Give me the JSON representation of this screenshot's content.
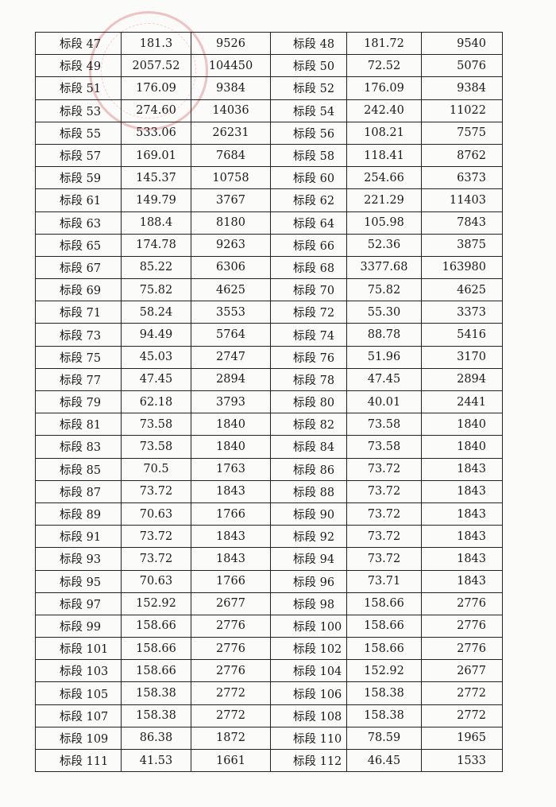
{
  "stamp_color": "#d65a5a",
  "rows": [
    [
      "标段 47",
      "181.3",
      "9526",
      "标段 48",
      "181.72",
      "9540"
    ],
    [
      "标段 49",
      "2057.52",
      "104450",
      "标段 50",
      "72.52",
      "5076"
    ],
    [
      "标段 51",
      "176.09",
      "9384",
      "标段 52",
      "176.09",
      "9384"
    ],
    [
      "标段 53",
      "274.60",
      "14036",
      "标段 54",
      "242.40",
      "11022"
    ],
    [
      "标段 55",
      "533.06",
      "26231",
      "标段 56",
      "108.21",
      "7575"
    ],
    [
      "标段 57",
      "169.01",
      "7684",
      "标段 58",
      "118.41",
      "8762"
    ],
    [
      "标段 59",
      "145.37",
      "10758",
      "标段 60",
      "254.66",
      "6373"
    ],
    [
      "标段 61",
      "149.79",
      "3767",
      "标段 62",
      "221.29",
      "11403"
    ],
    [
      "标段 63",
      "188.4",
      "8180",
      "标段 64",
      "105.98",
      "7843"
    ],
    [
      "标段 65",
      "174.78",
      "9263",
      "标段 66",
      "52.36",
      "3875"
    ],
    [
      "标段 67",
      "85.22",
      "6306",
      "标段 68",
      "3377.68",
      "163980"
    ],
    [
      "标段 69",
      "75.82",
      "4625",
      "标段 70",
      "75.82",
      "4625"
    ],
    [
      "标段 71",
      "58.24",
      "3553",
      "标段 72",
      "55.30",
      "3373"
    ],
    [
      "标段 73",
      "94.49",
      "5764",
      "标段 74",
      "88.78",
      "5416"
    ],
    [
      "标段 75",
      "45.03",
      "2747",
      "标段 76",
      "51.96",
      "3170"
    ],
    [
      "标段 77",
      "47.45",
      "2894",
      "标段 78",
      "47.45",
      "2894"
    ],
    [
      "标段 79",
      "62.18",
      "3793",
      "标段 80",
      "40.01",
      "2441"
    ],
    [
      "标段 81",
      "73.58",
      "1840",
      "标段 82",
      "73.58",
      "1840"
    ],
    [
      "标段 83",
      "73.58",
      "1840",
      "标段 84",
      "73.58",
      "1840"
    ],
    [
      "标段 85",
      "70.5",
      "1763",
      "标段 86",
      "73.72",
      "1843"
    ],
    [
      "标段 87",
      "73.72",
      "1843",
      "标段 88",
      "73.72",
      "1843"
    ],
    [
      "标段 89",
      "70.63",
      "1766",
      "标段 90",
      "73.72",
      "1843"
    ],
    [
      "标段 91",
      "73.72",
      "1843",
      "标段 92",
      "73.72",
      "1843"
    ],
    [
      "标段 93",
      "73.72",
      "1843",
      "标段 94",
      "73.72",
      "1843"
    ],
    [
      "标段 95",
      "70.63",
      "1766",
      "标段 96",
      "73.71",
      "1843"
    ],
    [
      "标段 97",
      "152.92",
      "2677",
      "标段 98",
      "158.66",
      "2776"
    ],
    [
      "标段 99",
      "158.66",
      "2776",
      "标段 100",
      "158.66",
      "2776"
    ],
    [
      "标段 101",
      "158.66",
      "2776",
      "标段 102",
      "158.66",
      "2776"
    ],
    [
      "标段 103",
      "158.66",
      "2776",
      "标段 104",
      "152.92",
      "2677"
    ],
    [
      "标段 105",
      "158.38",
      "2772",
      "标段 106",
      "158.38",
      "2772"
    ],
    [
      "标段 107",
      "158.38",
      "2772",
      "标段 108",
      "158.38",
      "2772"
    ],
    [
      "标段 109",
      "86.38",
      "1872",
      "标段 110",
      "78.59",
      "1965"
    ],
    [
      "标段 111",
      "41.53",
      "1661",
      "标段 112",
      "46.45",
      "1533"
    ]
  ]
}
